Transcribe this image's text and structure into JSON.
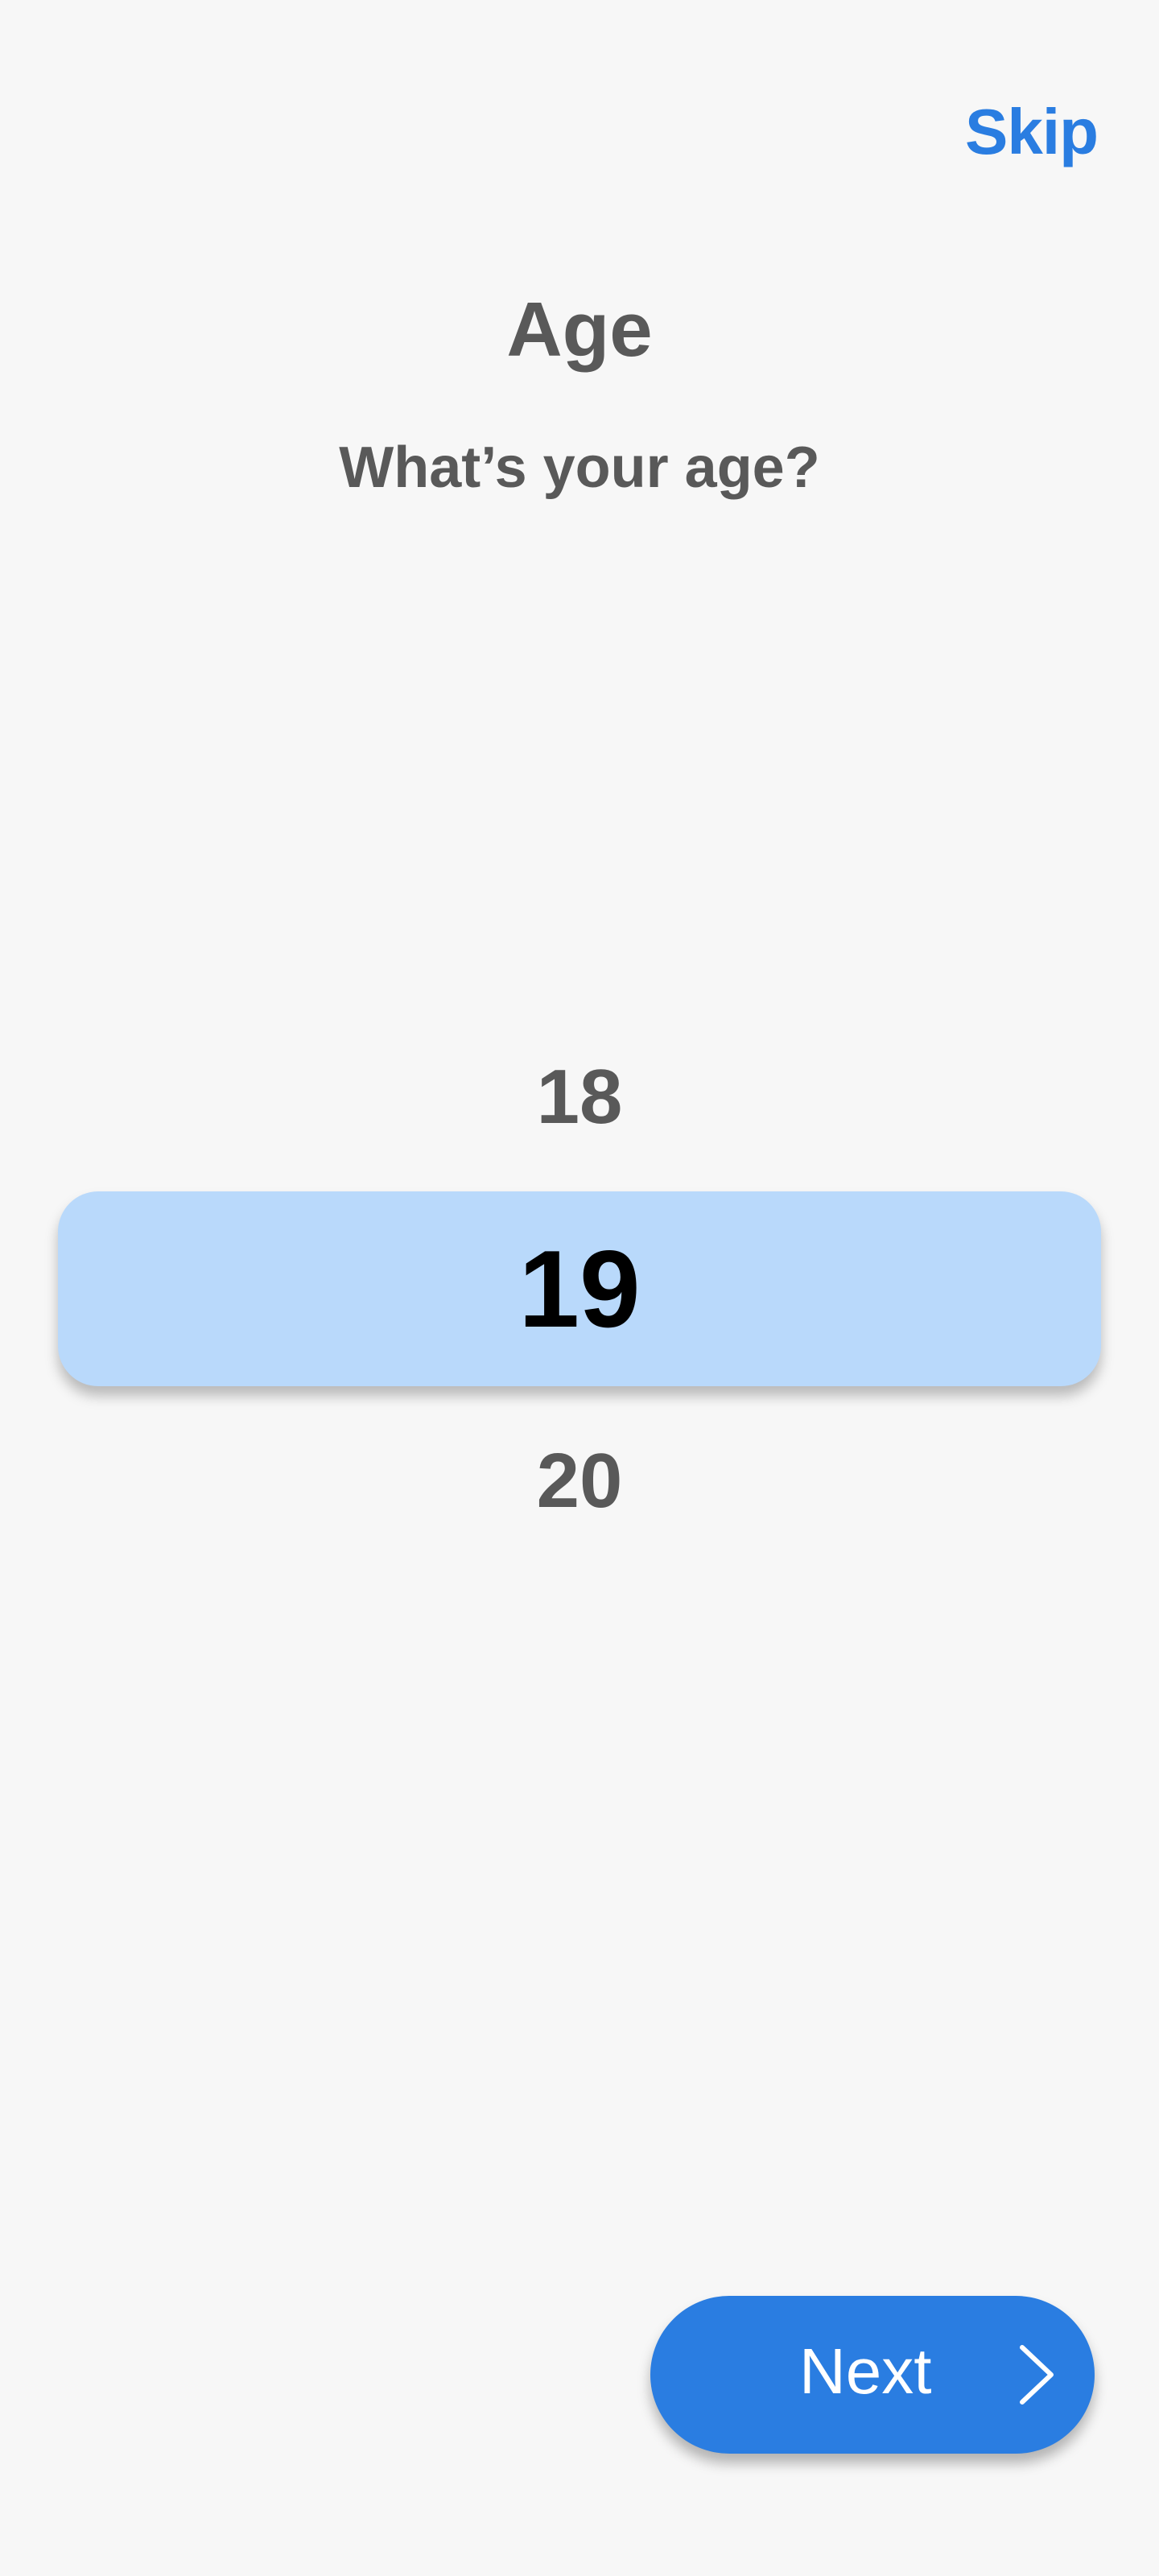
{
  "header": {
    "skip_label": "Skip"
  },
  "content": {
    "title": "Age",
    "subtitle": "What’s your age?"
  },
  "picker": {
    "previous_value": "18",
    "selected_value": "19",
    "next_value": "20"
  },
  "footer": {
    "next_label": "Next",
    "next_icon": "chevron-right-icon"
  },
  "colors": {
    "accent": "#2a7de1",
    "selection_background": "#b9d9fb",
    "text_muted": "#595959",
    "background": "#f7f7f7"
  }
}
